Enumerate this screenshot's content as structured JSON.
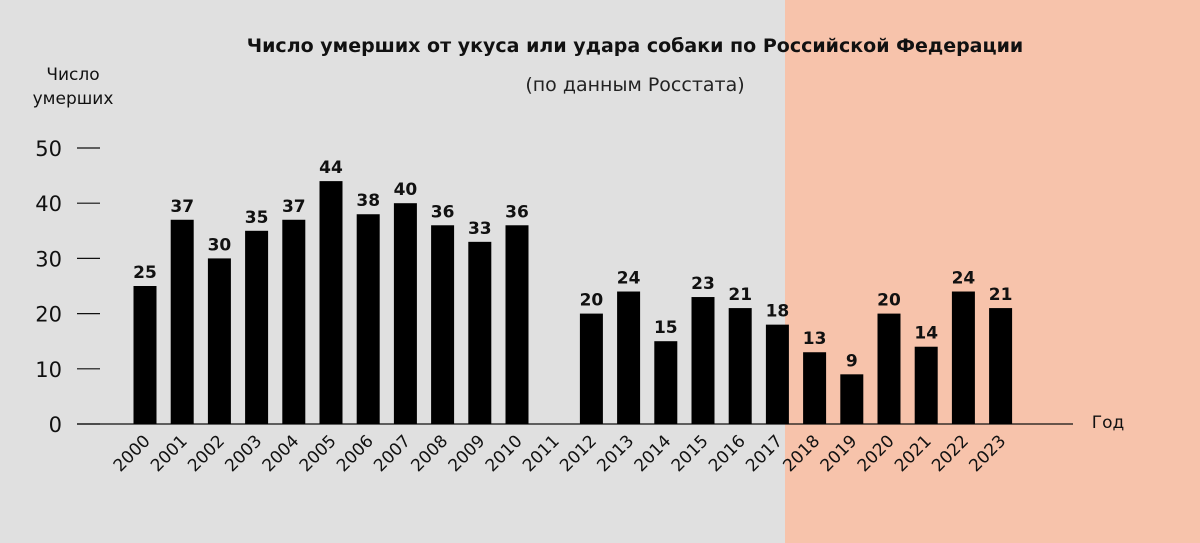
{
  "colors": {
    "background": "#e0e0e0",
    "highlight_region": "#f7c3ab",
    "bar": "#000000"
  },
  "chart_data": {
    "type": "bar",
    "title": "Число умерших от укуса или удара собаки по Российской Федерации",
    "subtitle": "(по данным Росстата)",
    "ylabel_line1": "Число",
    "ylabel_line2": "умерших",
    "xlabel": "Год",
    "ylim": [
      0,
      50
    ],
    "yticks": [
      0,
      10,
      20,
      30,
      40,
      50
    ],
    "categories": [
      "2000",
      "2001",
      "2002",
      "2003",
      "2004",
      "2005",
      "2006",
      "2007",
      "2008",
      "2009",
      "2010",
      "2011",
      "2012",
      "2013",
      "2014",
      "2015",
      "2016",
      "2017",
      "2018",
      "2019",
      "2020",
      "2021",
      "2022",
      "2023"
    ],
    "values": [
      25,
      37,
      30,
      35,
      37,
      44,
      38,
      40,
      36,
      33,
      36,
      null,
      20,
      24,
      15,
      23,
      21,
      18,
      13,
      9,
      20,
      14,
      24,
      21
    ],
    "highlight_from": "2018",
    "grid": false
  }
}
